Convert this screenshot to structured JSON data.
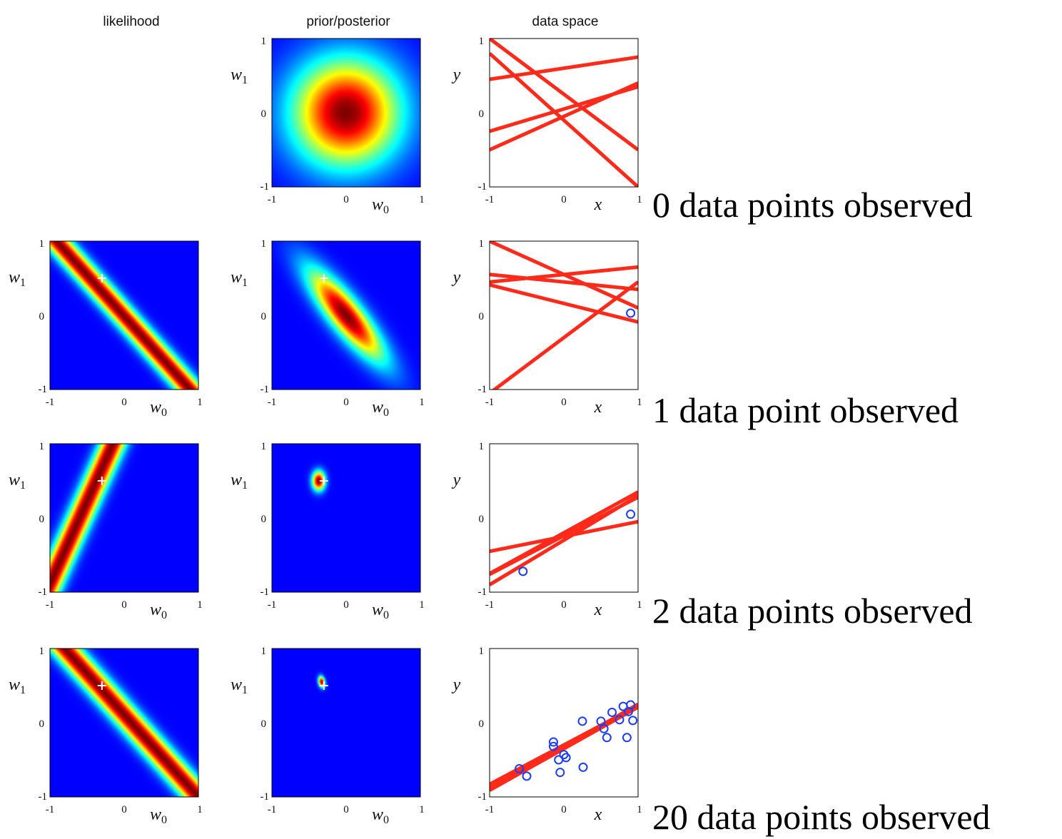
{
  "chart_data": {
    "type": "heatmap",
    "column_titles": [
      "likelihood",
      "prior/posterior",
      "data space"
    ],
    "param_axes": {
      "xlabel": "w",
      "xlabel_sub": "0",
      "ylabel": "w",
      "ylabel_sub": "1",
      "xlim": [
        -1,
        1
      ],
      "ylim": [
        -1,
        1
      ],
      "xticks": [
        "-1",
        "0",
        "1"
      ],
      "yticks": [
        "1",
        "0",
        "-1"
      ]
    },
    "data_axes": {
      "xlabel": "x",
      "ylabel": "y",
      "xlim": [
        -1,
        1
      ],
      "ylim": [
        -1,
        1
      ],
      "xticks": [
        "-1",
        "0",
        "1"
      ],
      "yticks": [
        "1",
        "0",
        "-1"
      ]
    },
    "colors": {
      "line": "#ff2a1a",
      "point": "#1a3cff",
      "marker": "#ffffff"
    },
    "true_parameters": [
      -0.3,
      0.5
    ],
    "rows": [
      {
        "caption": "0 data points observed",
        "likelihood": null,
        "posterior": {
          "mean": [
            0.0,
            0.0
          ],
          "sd": [
            0.5,
            0.5
          ],
          "corr": 0.0
        },
        "sample_lines": [
          {
            "w0": 0.25,
            "w1": -0.75
          },
          {
            "w0": 0.6,
            "w1": 0.15
          },
          {
            "w0": -0.1,
            "w1": -0.9
          },
          {
            "w0": 0.05,
            "w1": 0.3
          },
          {
            "w0": -0.05,
            "w1": 0.45
          }
        ],
        "points": []
      },
      {
        "caption": "1 data point observed",
        "likelihood": {
          "slope_u": 1.0,
          "slope_v": 0.9,
          "center": -0.01,
          "width": 0.1
        },
        "posterior": {
          "mean": [
            0.0,
            0.0
          ],
          "sd": [
            0.35,
            0.42
          ],
          "corr": -0.85
        },
        "sample_lines": [
          {
            "w0": 0.45,
            "w1": -0.1
          },
          {
            "w0": 0.55,
            "w1": 0.1
          },
          {
            "w0": 0.16,
            "w1": -0.25
          },
          {
            "w0": 0.55,
            "w1": -0.45
          },
          {
            "w0": -0.3,
            "w1": 0.75
          }
        ],
        "points": [
          [
            0.9,
            0.03
          ]
        ]
      },
      {
        "caption": "2 data points observed",
        "likelihood": {
          "slope_u": 1.0,
          "slope_v": -0.45,
          "center": -0.6,
          "width": 0.11
        },
        "posterior": {
          "mean": [
            -0.37,
            0.5
          ],
          "sd": [
            0.06,
            0.09
          ],
          "corr": 0.0
        },
        "sample_lines": [
          {
            "w0": -0.2,
            "w1": 0.55
          },
          {
            "w0": -0.3,
            "w1": 0.6
          },
          {
            "w0": -0.24,
            "w1": 0.52
          },
          {
            "w0": -0.25,
            "w1": 0.2
          }
        ],
        "points": [
          [
            0.9,
            0.05
          ],
          [
            -0.55,
            -0.72
          ]
        ]
      },
      {
        "caption": "20 data points observed",
        "likelihood": {
          "slope_u": 1.0,
          "slope_v": 0.9,
          "center": 0.1,
          "width": 0.11
        },
        "posterior": {
          "mean": [
            -0.33,
            0.55
          ],
          "sd": [
            0.03,
            0.05
          ],
          "corr": -0.2
        },
        "sample_lines": [
          {
            "w0": -0.32,
            "w1": 0.55
          },
          {
            "w0": -0.35,
            "w1": 0.56
          },
          {
            "w0": -0.3,
            "w1": 0.53
          },
          {
            "w0": -0.33,
            "w1": 0.58
          }
        ],
        "points": [
          [
            -0.6,
            -0.62
          ],
          [
            -0.5,
            -0.72
          ],
          [
            -0.14,
            -0.26
          ],
          [
            -0.14,
            -0.32
          ],
          [
            -0.07,
            -0.5
          ],
          [
            -0.05,
            -0.67
          ],
          [
            0.0,
            -0.43
          ],
          [
            0.03,
            -0.47
          ],
          [
            0.25,
            0.02
          ],
          [
            0.26,
            -0.6
          ],
          [
            0.5,
            0.02
          ],
          [
            0.54,
            -0.08
          ],
          [
            0.58,
            -0.2
          ],
          [
            0.65,
            0.14
          ],
          [
            0.75,
            0.04
          ],
          [
            0.8,
            0.22
          ],
          [
            0.85,
            -0.2
          ],
          [
            0.87,
            0.15
          ],
          [
            0.9,
            0.24
          ],
          [
            0.93,
            0.03
          ]
        ]
      }
    ]
  }
}
